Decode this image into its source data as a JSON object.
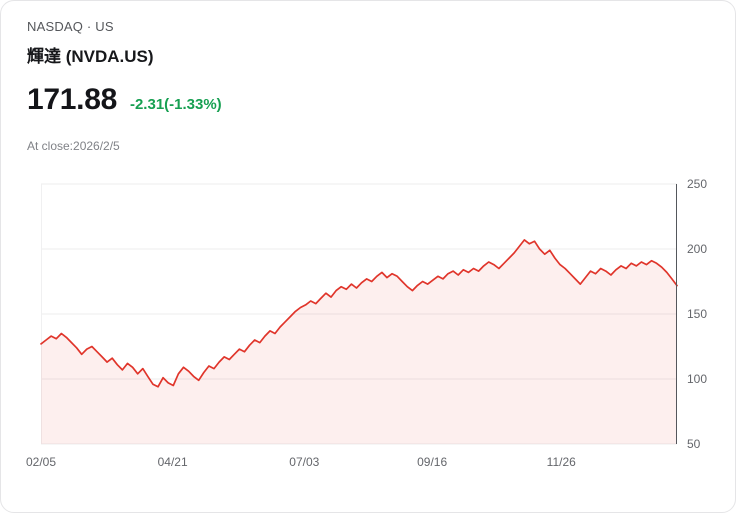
{
  "header": {
    "exchange_line": "NASDAQ · US",
    "title": "輝達 (NVDA.US)"
  },
  "quote": {
    "price": "171.88",
    "change": "-2.31(-1.33%)",
    "change_color": "#17a052",
    "as_of": "At close:2026/2/5"
  },
  "chart_data": {
    "type": "area",
    "title": "",
    "xlabel": "",
    "ylabel": "",
    "line_color": "#e0352b",
    "fill_color": "rgba(224,53,43,0.08)",
    "ylim": [
      50,
      250
    ],
    "y_ticks": [
      250,
      200,
      150,
      100,
      50
    ],
    "x_tick_labels": [
      "02/05",
      "04/21",
      "07/03",
      "09/16",
      "11/26"
    ],
    "x_tick_positions": [
      0.0,
      0.207,
      0.414,
      0.615,
      0.818
    ],
    "values": [
      127,
      130,
      133,
      131,
      135,
      132,
      128,
      124,
      119,
      123,
      125,
      121,
      117,
      113,
      116,
      111,
      107,
      112,
      109,
      104,
      108,
      102,
      96,
      94,
      101,
      97,
      95,
      104,
      109,
      106,
      102,
      99,
      105,
      110,
      108,
      113,
      117,
      115,
      119,
      123,
      121,
      126,
      130,
      128,
      133,
      137,
      135,
      140,
      144,
      148,
      152,
      155,
      157,
      160,
      158,
      162,
      166,
      163,
      168,
      171,
      169,
      173,
      170,
      174,
      177,
      175,
      179,
      182,
      178,
      181,
      179,
      175,
      171,
      168,
      172,
      175,
      173,
      176,
      179,
      177,
      181,
      183,
      180,
      184,
      182,
      185,
      183,
      187,
      190,
      188,
      185,
      189,
      193,
      197,
      202,
      207,
      204,
      206,
      200,
      196,
      199,
      193,
      188,
      185,
      181,
      177,
      173,
      178,
      183,
      181,
      185,
      183,
      180,
      184,
      187,
      185,
      189,
      187,
      190,
      188,
      191,
      189,
      186,
      182,
      177,
      171.88
    ]
  }
}
